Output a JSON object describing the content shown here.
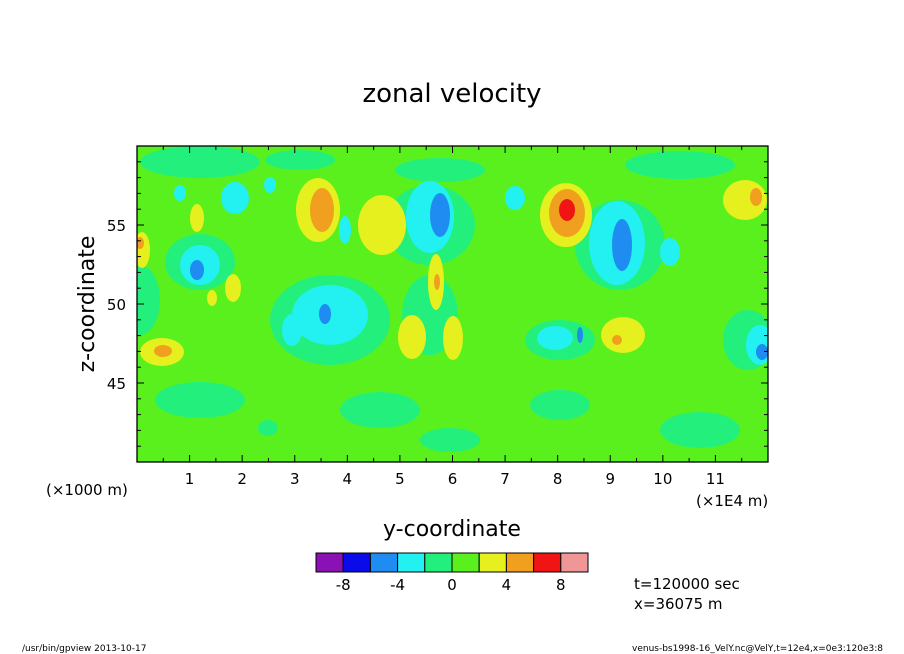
{
  "chart_data": {
    "type": "heatmap",
    "title": "zonal velocity",
    "xlabel": "y-coordinate",
    "ylabel": "z-coordinate",
    "x_unit_left": "(×1000 m)",
    "x_unit_right": "(×1E4 m)",
    "xlim": [
      0,
      12
    ],
    "ylim": [
      40,
      60
    ],
    "x_ticks": [
      "1",
      "2",
      "3",
      "4",
      "5",
      "6",
      "7",
      "8",
      "9",
      "10",
      "11"
    ],
    "y_ticks": [
      "45",
      "50",
      "55"
    ],
    "background_level": "0 to 2",
    "colorbar": {
      "levels": [
        -10,
        -8,
        -6,
        -4,
        -2,
        0,
        2,
        4,
        6,
        8,
        10
      ],
      "colors": [
        "#8a12b4",
        "#0b0bea",
        "#1e8cf0",
        "#23f0f0",
        "#23f07c",
        "#5af01e",
        "#e6f01e",
        "#f0a01e",
        "#f01414",
        "#f09696"
      ],
      "tick_labels": [
        "-8",
        "-4",
        "0",
        "4",
        "8"
      ]
    },
    "features": [
      {
        "y": 5.6,
        "z": 54.5,
        "value": -5
      },
      {
        "y": 8.9,
        "z": 53.8,
        "value": -5
      },
      {
        "y": 1.2,
        "z": 52.3,
        "value": -5
      },
      {
        "y": 3.5,
        "z": 56.0,
        "value": 5
      },
      {
        "y": 8.2,
        "z": 56.0,
        "value": 9
      },
      {
        "y": 4.6,
        "z": 55.0,
        "value": 3
      },
      {
        "y": 5.8,
        "z": 51.5,
        "value": 4
      },
      {
        "y": 9.3,
        "z": 48.0,
        "value": 4
      },
      {
        "y": 0.3,
        "z": 47.5,
        "value": 4
      },
      {
        "y": 11.8,
        "z": 47.0,
        "value": -5
      }
    ]
  },
  "annotations": {
    "time": "t=120000 sec",
    "position": "x=36075 m",
    "footer_left": "/usr/bin/gpview   2013-10-17",
    "footer_right": "venus-bs1998-16_VelY.nc@VelY,t=12e4,x=0e3:120e3:8"
  }
}
